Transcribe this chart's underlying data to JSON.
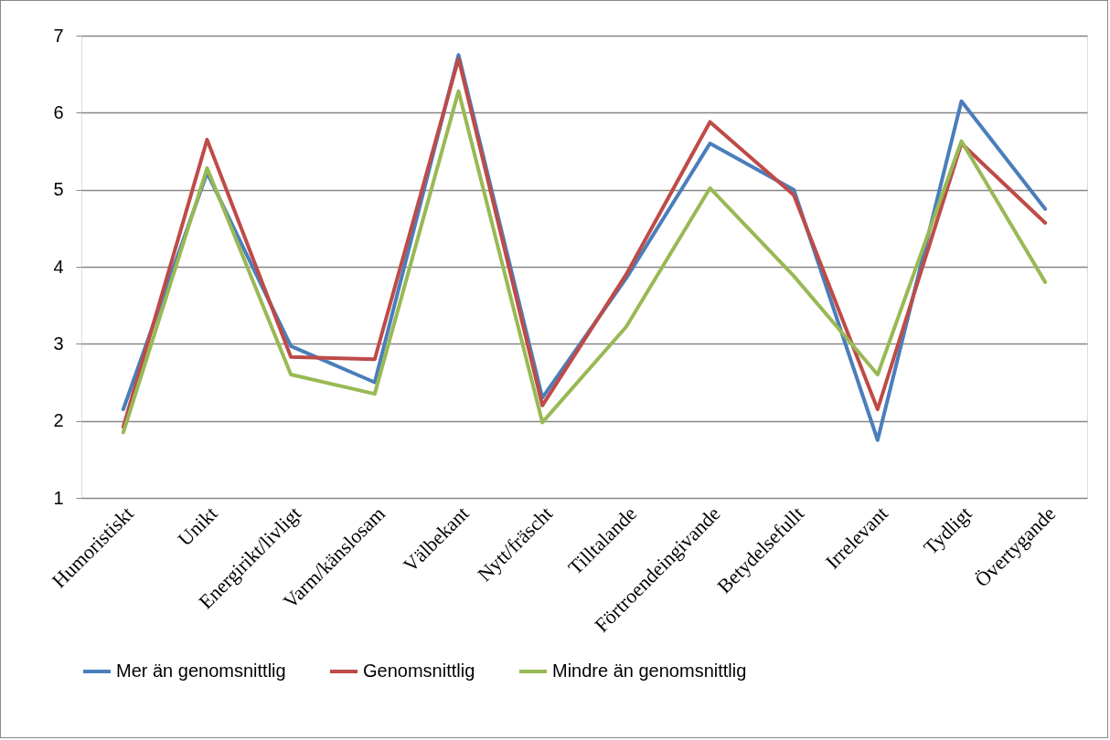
{
  "chart_data": {
    "type": "line",
    "categories": [
      "Humoristiskt",
      "Unikt",
      "Energirikt/livligt",
      "Varm/känslosam",
      "Välbekant",
      "Nytt/fräscht",
      "Tilltalande",
      "Förtroendeingivande",
      "Betydelsefullt",
      "Irrelevant",
      "Tydligt",
      "Övertygande"
    ],
    "series": [
      {
        "name": "Mer än genomsnittlig",
        "color": "#4a7ebb",
        "values": [
          2.15,
          5.22,
          2.97,
          2.5,
          6.75,
          2.3,
          3.85,
          5.6,
          5.0,
          1.75,
          6.15,
          4.75
        ]
      },
      {
        "name": "Genomsnittlig",
        "color": "#be4b48",
        "values": [
          1.92,
          5.65,
          2.83,
          2.8,
          6.7,
          2.2,
          3.9,
          5.88,
          4.93,
          2.15,
          5.6,
          4.57
        ]
      },
      {
        "name": "Mindre än genomsnittlig",
        "color": "#98b954",
        "values": [
          1.85,
          5.28,
          2.6,
          2.35,
          6.28,
          1.98,
          3.22,
          5.02,
          3.88,
          2.6,
          5.63,
          3.8
        ]
      }
    ],
    "ylim": [
      1,
      7
    ],
    "yticks": [
      1,
      2,
      3,
      4,
      5,
      6,
      7
    ],
    "grid": "y",
    "legend": "bottom",
    "line_style": "solid"
  }
}
